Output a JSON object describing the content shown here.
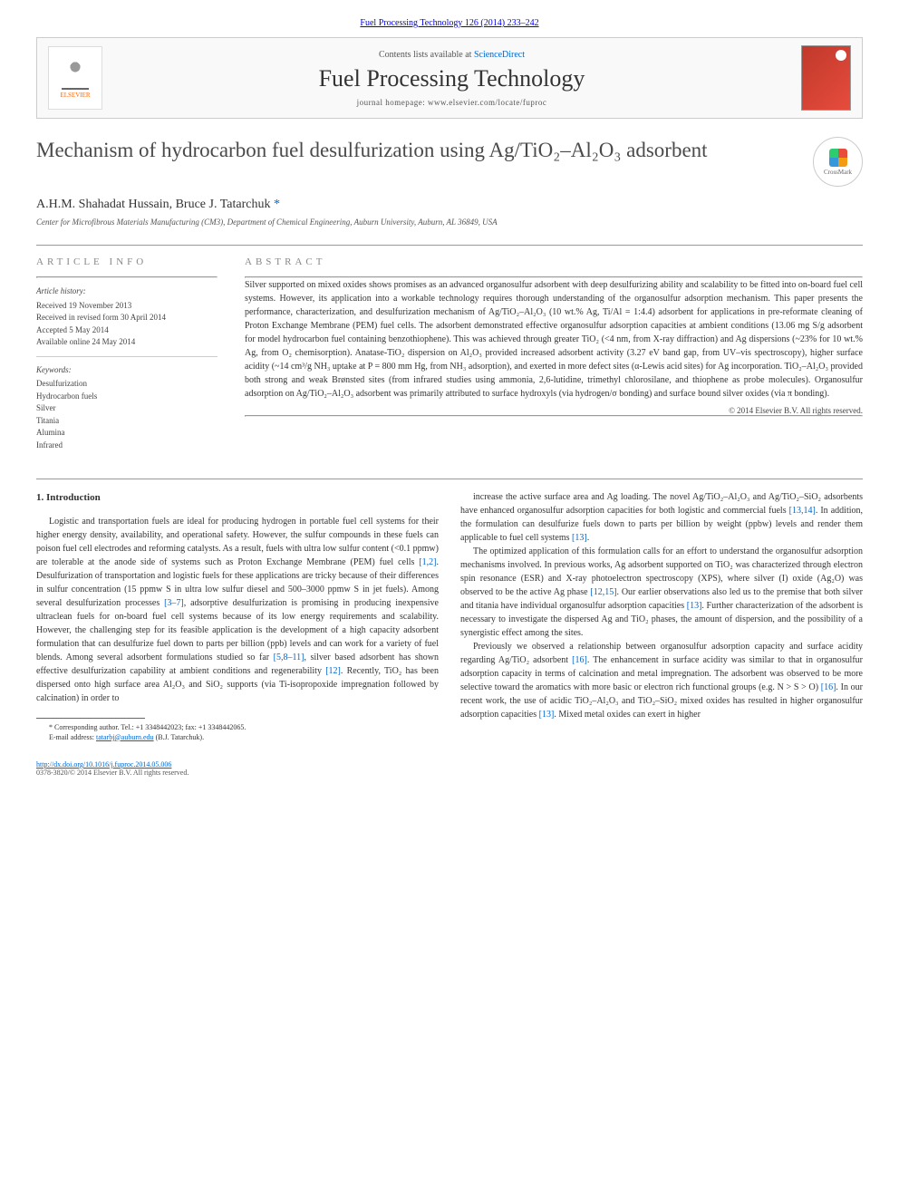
{
  "header": {
    "citation_link": "Fuel Processing Technology 126 (2014) 233–242",
    "contents_prefix": "Contents lists available at ",
    "contents_link": "ScienceDirect",
    "journal_title": "Fuel Processing Technology",
    "homepage_label": "journal homepage: ",
    "homepage_url": "www.elsevier.com/locate/fuproc",
    "elsevier_label": "ELSEVIER",
    "crossmark_label": "CrossMark"
  },
  "article": {
    "title_html": "Mechanism of hydrocarbon fuel desulfurization using Ag/TiO₂–Al₂O₃ adsorbent",
    "authors": "A.H.M. Shahadat Hussain, Bruce J. Tatarchuk",
    "corr_marker": "*",
    "affiliation": "Center for Microfibrous Materials Manufacturing (CM3), Department of Chemical Engineering, Auburn University, Auburn, AL 36849, USA"
  },
  "info": {
    "section_label": "ARTICLE INFO",
    "history_heading": "Article history:",
    "received": "Received 19 November 2013",
    "revised": "Received in revised form 30 April 2014",
    "accepted": "Accepted 5 May 2014",
    "online": "Available online 24 May 2014",
    "keywords_heading": "Keywords:",
    "keywords": [
      "Desulfurization",
      "Hydrocarbon fuels",
      "Silver",
      "Titania",
      "Alumina",
      "Infrared"
    ]
  },
  "abstract": {
    "section_label": "ABSTRACT",
    "text": "Silver supported on mixed oxides shows promises as an advanced organosulfur adsorbent with deep desulfurizing ability and scalability to be fitted into on-board fuel cell systems. However, its application into a workable technology requires thorough understanding of the organosulfur adsorption mechanism. This paper presents the performance, characterization, and desulfurization mechanism of Ag/TiO₂–Al₂O₃ (10 wt.% Ag, Ti/Al = 1:4.4) adsorbent for applications in pre-reformate cleaning of Proton Exchange Membrane (PEM) fuel cells. The adsorbent demonstrated effective organosulfur adsorption capacities at ambient conditions (13.06 mg S/g adsorbent for model hydrocarbon fuel containing benzothiophene). This was achieved through greater TiO₂ (<4 nm, from X-ray diffraction) and Ag dispersions (~23% for 10 wt.% Ag, from O₂ chemisorption). Anatase-TiO₂ dispersion on Al₂O₃ provided increased adsorbent activity (3.27 eV band gap, from UV–vis spectroscopy), higher surface acidity (~14 cm³/g NH₃ uptake at P = 800 mm Hg, from NH₃ adsorption), and exerted in more defect sites (α-Lewis acid sites) for Ag incorporation. TiO₂–Al₂O₃ provided both strong and weak Brønsted sites (from infrared studies using ammonia, 2,6-lutidine, trimethyl chlorosilane, and thiophene as probe molecules). Organosulfur adsorption on Ag/TiO₂–Al₂O₃ adsorbent was primarily attributed to surface hydroxyls (via hydrogen/σ bonding) and surface bound silver oxides (via π bonding).",
    "copyright": "© 2014 Elsevier B.V. All rights reserved."
  },
  "body": {
    "intro_heading": "1. Introduction",
    "col1_p1": "Logistic and transportation fuels are ideal for producing hydrogen in portable fuel cell systems for their higher energy density, availability, and operational safety. However, the sulfur compounds in these fuels can poison fuel cell electrodes and reforming catalysts. As a result, fuels with ultra low sulfur content (<0.1 ppmw) are tolerable at the anode side of systems such as Proton Exchange Membrane (PEM) fuel cells [1,2]. Desulfurization of transportation and logistic fuels for these applications are tricky because of their differences in sulfur concentration (15 ppmw S in ultra low sulfur diesel and 500–3000 ppmw S in jet fuels). Among several desulfurization processes [3–7], adsorptive desulfurization is promising in producing inexpensive ultraclean fuels for on-board fuel cell systems because of its low energy requirements and scalability. However, the challenging step for its feasible application is the development of a high capacity adsorbent formulation that can desulfurize fuel down to parts per billion (ppb) levels and can work for a variety of fuel blends. Among several adsorbent formulations studied so far [5,8–11], silver based adsorbent has shown effective desulfurization capability at ambient conditions and regenerability [12]. Recently, TiO₂ has been dispersed onto high surface area Al₂O₃ and SiO₂ supports (via Ti-isopropoxide impregnation followed by calcination) in order to",
    "col2_p1": "increase the active surface area and Ag loading. The novel Ag/TiO₂–Al₂O₃ and Ag/TiO₂–SiO₂ adsorbents have enhanced organosulfur adsorption capacities for both logistic and commercial fuels [13,14]. In addition, the formulation can desulfurize fuels down to parts per billion by weight (ppbw) levels and render them applicable to fuel cell systems [13].",
    "col2_p2": "The optimized application of this formulation calls for an effort to understand the organosulfur adsorption mechanisms involved. In previous works, Ag adsorbent supported on TiO₂ was characterized through electron spin resonance (ESR) and X-ray photoelectron spectroscopy (XPS), where silver (I) oxide (Ag₂O) was observed to be the active Ag phase [12,15]. Our earlier observations also led us to the premise that both silver and titania have individual organosulfur adsorption capacities [13]. Further characterization of the adsorbent is necessary to investigate the dispersed Ag and TiO₂ phases, the amount of dispersion, and the possibility of a synergistic effect among the sites.",
    "col2_p3": "Previously we observed a relationship between organosulfur adsorption capacity and surface acidity regarding Ag/TiO₂ adsorbent [16]. The enhancement in surface acidity was similar to that in organosulfur adsorption capacity in terms of calcination and metal impregnation. The adsorbent was observed to be more selective toward the aromatics with more basic or electron rich functional groups (e.g. N > S > O) [16]. In our recent work, the use of acidic TiO₂–Al₂O₃ and TiO₂–SiO₂ mixed oxides has resulted in higher organosulfur adsorption capacities [13]. Mixed metal oxides can exert in higher"
  },
  "footnote": {
    "corr_label": "* Corresponding author. Tel.: +1 3348442023; fax: +1 3348442065.",
    "email_label": "E-mail address: ",
    "email": "tatarbj@auburn.edu",
    "email_suffix": " (B.J. Tatarchuk)."
  },
  "footer": {
    "doi": "http://dx.doi.org/10.1016/j.fuproc.2014.05.006",
    "issn_line": "0378-3820/© 2014 Elsevier B.V. All rights reserved."
  },
  "colors": {
    "link": "#0066cc",
    "text": "#333333",
    "muted": "#888888"
  }
}
